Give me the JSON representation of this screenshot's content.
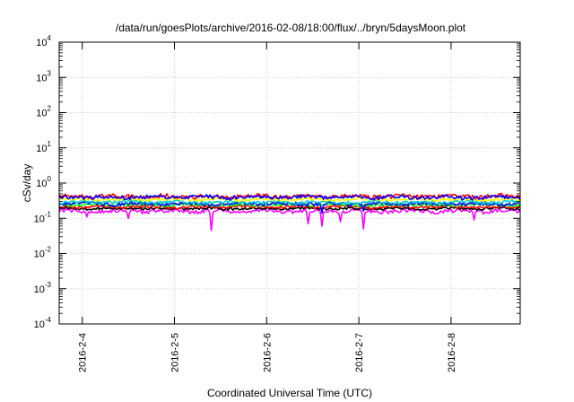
{
  "chart_data": {
    "type": "line",
    "title": "/data/run/goesPlots/archive/2016-02-08/18:00/flux/../bryn/5daysMoon.plot",
    "xlabel": "Coordinated Universal Time (UTC)",
    "ylabel": "cSv/day",
    "x_tick_labels": [
      "2016-2-4",
      "2016-2-5",
      "2016-2-6",
      "2016-2-7",
      "2016-2-8"
    ],
    "y_tick_labels": [
      {
        "base": "10",
        "exp": "-4"
      },
      {
        "base": "10",
        "exp": "-3"
      },
      {
        "base": "10",
        "exp": "-2"
      },
      {
        "base": "10",
        "exp": "-1"
      },
      {
        "base": "10",
        "exp": "0"
      },
      {
        "base": "10",
        "exp": "1"
      },
      {
        "base": "10",
        "exp": "2"
      },
      {
        "base": "10",
        "exp": "3"
      },
      {
        "base": "10",
        "exp": "4"
      }
    ],
    "xlim": [
      "2016-02-03T18:00",
      "2016-02-08T18:00"
    ],
    "ylim": [
      0.0001,
      10000
    ],
    "y_scale": "log",
    "grid": true,
    "legend": "none",
    "series": [
      {
        "color": "#ff00ff",
        "base": 0.16,
        "noise": 0.02,
        "spikes": [
          [
            0.06,
            0.11
          ],
          [
            0.15,
            0.1
          ],
          [
            0.33,
            0.045
          ],
          [
            0.54,
            0.07
          ],
          [
            0.57,
            0.06
          ],
          [
            0.61,
            0.08
          ],
          [
            0.66,
            0.05
          ],
          [
            0.9,
            0.09
          ]
        ]
      },
      {
        "color": "#000000",
        "base": 0.19,
        "noise": 0.015,
        "spikes": []
      },
      {
        "color": "#ff0000",
        "base": 0.21,
        "noise": 0.02,
        "spikes": []
      },
      {
        "color": "#00ff00",
        "base": 0.24,
        "noise": 0.02,
        "spikes": []
      },
      {
        "color": "#0000ff",
        "base": 0.26,
        "noise": 0.03,
        "spikes": [
          [
            0.57,
            0.14
          ],
          [
            0.66,
            0.16
          ]
        ]
      },
      {
        "color": "#00cccc",
        "base": 0.29,
        "noise": 0.03,
        "spikes": []
      },
      {
        "color": "#ffff00",
        "base": 0.34,
        "noise": 0.03,
        "spikes": []
      },
      {
        "color": "#ff0000",
        "base": 0.42,
        "noise": 0.06,
        "spikes": []
      },
      {
        "color": "#0000ff",
        "base": 0.4,
        "noise": 0.05,
        "spikes": []
      }
    ]
  }
}
